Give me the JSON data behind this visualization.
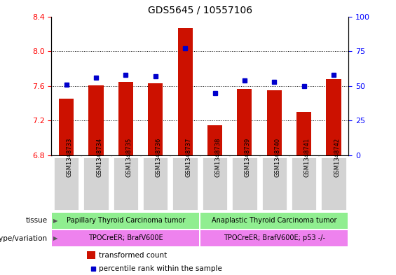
{
  "title": "GDS5645 / 10557106",
  "samples": [
    "GSM1348733",
    "GSM1348734",
    "GSM1348735",
    "GSM1348736",
    "GSM1348737",
    "GSM1348738",
    "GSM1348739",
    "GSM1348740",
    "GSM1348741",
    "GSM1348742"
  ],
  "transformed_count": [
    7.45,
    7.61,
    7.65,
    7.63,
    8.27,
    7.15,
    7.57,
    7.55,
    7.3,
    7.68
  ],
  "percentile_rank": [
    51,
    56,
    58,
    57,
    77,
    45,
    54,
    53,
    50,
    58
  ],
  "ylim_left": [
    6.8,
    8.4
  ],
  "ylim_right": [
    0,
    100
  ],
  "yticks_left": [
    6.8,
    7.2,
    7.6,
    8.0,
    8.4
  ],
  "yticks_right": [
    0,
    25,
    50,
    75,
    100
  ],
  "bar_color": "#cc1100",
  "dot_color": "#0000cc",
  "tissue_group1": "Papillary Thyroid Carcinoma tumor",
  "tissue_group2": "Anaplastic Thyroid Carcinoma tumor",
  "genotype_group1": "TPOCreER; BrafV600E",
  "genotype_group2": "TPOCreER; BrafV600E; p53 -/-",
  "tissue_color": "#90ee90",
  "genotype_color": "#ee82ee",
  "tick_label_bg": "#d3d3d3",
  "legend_red_label": "transformed count",
  "legend_blue_label": "percentile rank within the sample",
  "n_group1": 5,
  "n_group2": 5,
  "grid_lines": [
    7.2,
    7.6,
    8.0
  ],
  "bar_width": 0.5
}
